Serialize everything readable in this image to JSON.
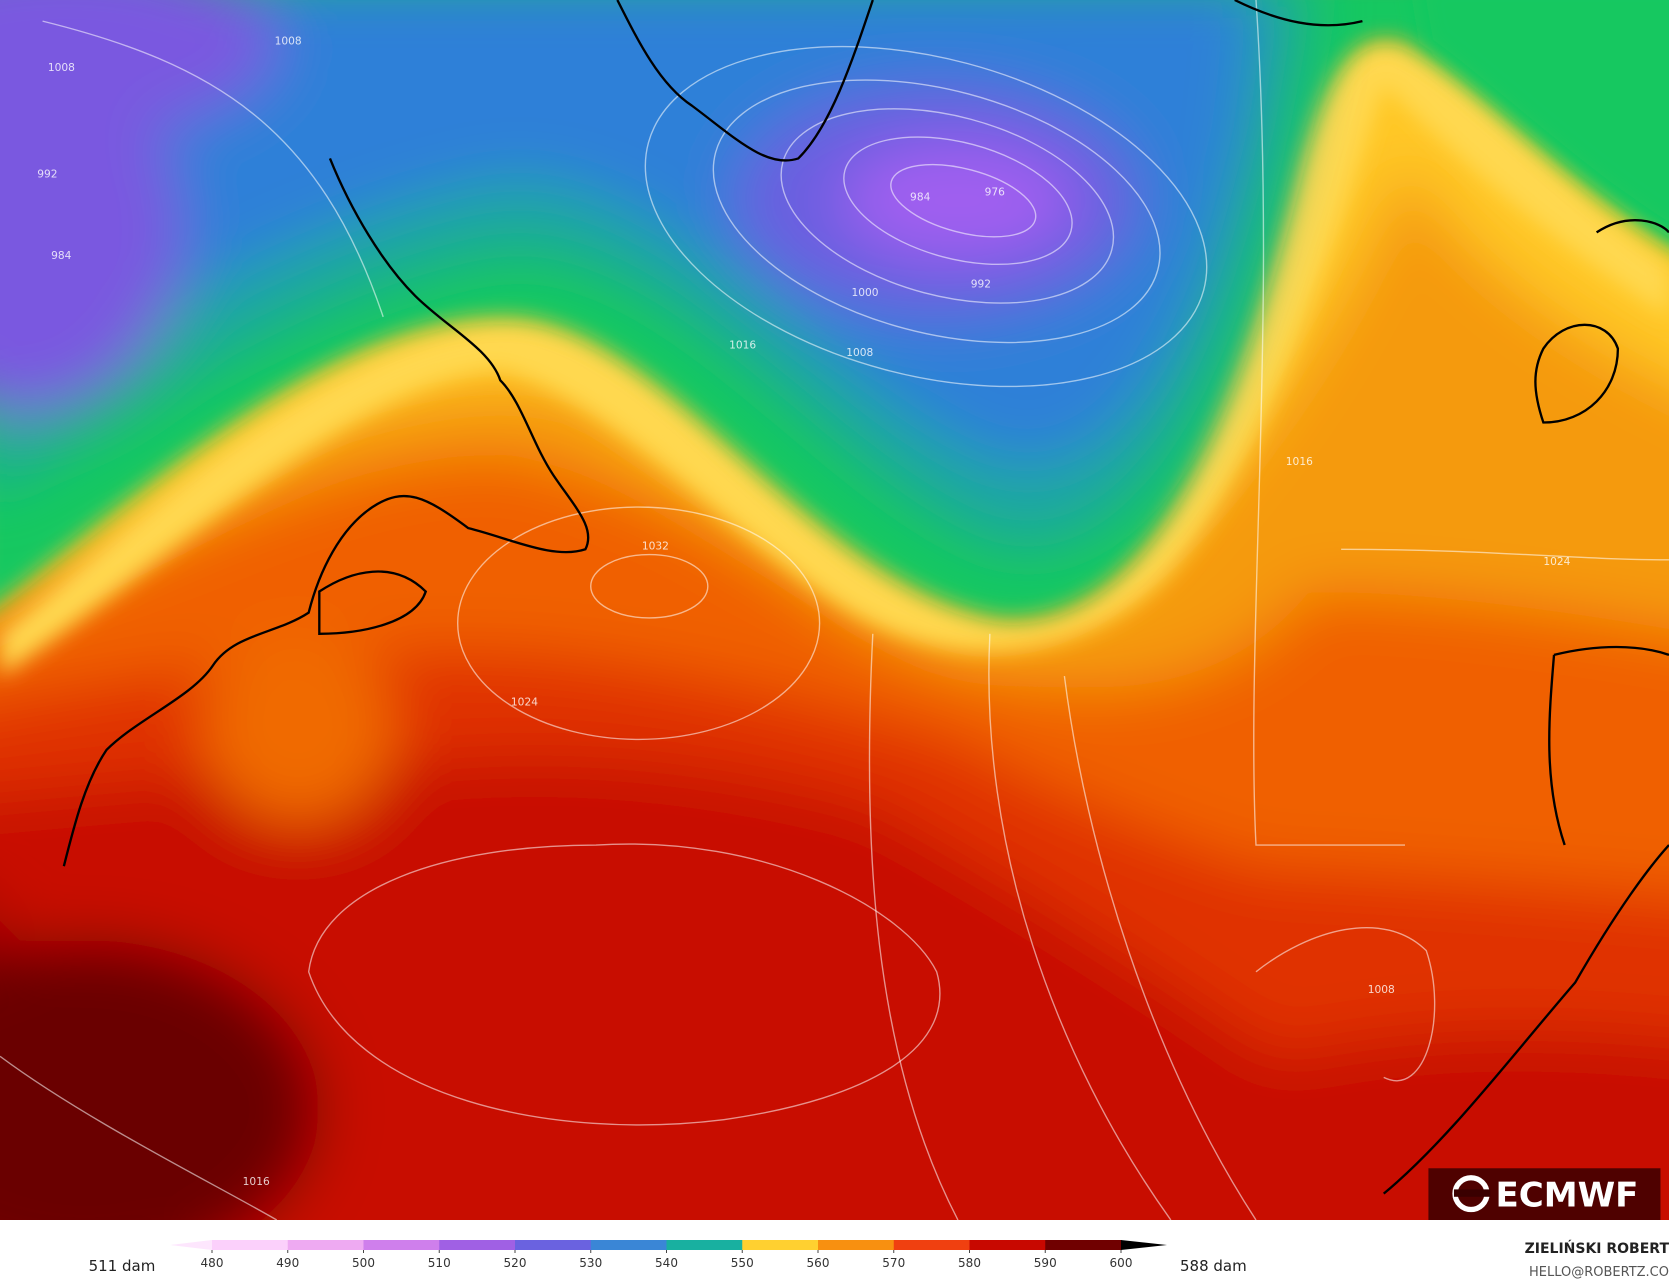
{
  "map": {
    "isobar_labels": [
      "1008",
      "992",
      "984",
      "1008",
      "984",
      "976",
      "992",
      "1000",
      "1016",
      "1008",
      "1016",
      "1032",
      "1024",
      "1024",
      "1016",
      "1008"
    ],
    "logo": "ECMWF"
  },
  "legend": {
    "left_label": "511 dam",
    "right_label": "588 dam",
    "ticks": [
      480,
      490,
      500,
      510,
      520,
      530,
      540,
      550,
      560,
      570,
      580,
      590,
      600
    ],
    "colors": [
      "#fbd0fb",
      "#eeaaf2",
      "#cf7fec",
      "#a060e4",
      "#6a62e0",
      "#3a86d6",
      "#18b0a0",
      "#ffd030",
      "#f89010",
      "#f04010",
      "#c80800",
      "#700000"
    ],
    "below_color": "#fde6fd",
    "above_color": "#000000"
  },
  "credit": {
    "name": "ZIELIŃSKI ROBERT",
    "email": "HELLO@ROBERTZ.CO"
  }
}
